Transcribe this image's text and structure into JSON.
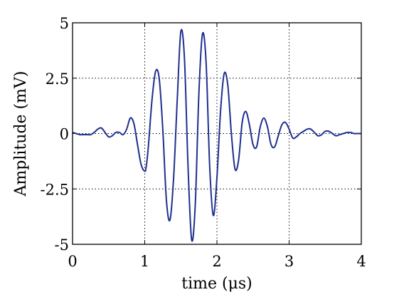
{
  "chart_data": {
    "type": "line",
    "xlabel": "time (μs)",
    "ylabel": "Amplitude (mV)",
    "xlim": [
      0,
      4
    ],
    "ylim": [
      -5,
      5
    ],
    "x_ticks": [
      0,
      1,
      2,
      3,
      4
    ],
    "x_tick_labels": [
      "0",
      "1",
      "2",
      "3",
      "4"
    ],
    "y_ticks": [
      5,
      2.5,
      0,
      -2.5,
      -5
    ],
    "y_tick_labels": [
      "5",
      "2.5",
      "0",
      "-2.5",
      "-5"
    ],
    "grid": true,
    "grid_style": "dotted",
    "line_color": "#1f2f8f",
    "series": [
      {
        "x": [
          0.0,
          0.05,
          0.1,
          0.15,
          0.2,
          0.25,
          0.3,
          0.35,
          0.4,
          0.45,
          0.5,
          0.55,
          0.6,
          0.65,
          0.7,
          0.75,
          0.8,
          0.85,
          0.9,
          0.95,
          1.0,
          1.02,
          1.05,
          1.1,
          1.15,
          1.2,
          1.25,
          1.3,
          1.35,
          1.4,
          1.45,
          1.5,
          1.55,
          1.6,
          1.65,
          1.7,
          1.75,
          1.8,
          1.85,
          1.9,
          1.95,
          2.0,
          2.05,
          2.1,
          2.15,
          2.2,
          2.25,
          2.3,
          2.35,
          2.4,
          2.45,
          2.5,
          2.55,
          2.6,
          2.65,
          2.7,
          2.75,
          2.8,
          2.85,
          2.9,
          2.95,
          3.0,
          3.05,
          3.1,
          3.15,
          3.2,
          3.25,
          3.3,
          3.35,
          3.4,
          3.45,
          3.5,
          3.55,
          3.6,
          3.65,
          3.7,
          3.75,
          3.8,
          3.85,
          3.9,
          3.95,
          4.0
        ],
        "y": [
          0.05,
          0.0,
          -0.05,
          -0.05,
          -0.05,
          -0.05,
          0.05,
          0.2,
          0.25,
          0.05,
          -0.15,
          -0.1,
          0.05,
          0.05,
          -0.05,
          0.2,
          0.7,
          0.45,
          -0.5,
          -1.4,
          -1.7,
          -1.5,
          -0.6,
          1.5,
          2.8,
          2.5,
          0.2,
          -3.0,
          -3.9,
          -2.0,
          1.5,
          4.6,
          3.4,
          -1.5,
          -4.8,
          -3.2,
          1.8,
          4.5,
          3.2,
          -1.5,
          -3.7,
          -2.0,
          1.0,
          2.7,
          2.2,
          0.0,
          -1.6,
          -1.2,
          0.5,
          1.0,
          0.4,
          -0.5,
          -0.6,
          0.3,
          0.7,
          0.3,
          -0.5,
          -0.6,
          -0.1,
          0.4,
          0.5,
          0.2,
          -0.2,
          -0.15,
          0.0,
          0.1,
          0.2,
          0.2,
          0.05,
          -0.1,
          -0.05,
          0.1,
          0.1,
          0.0,
          -0.1,
          -0.05,
          0.0,
          0.05,
          0.05,
          0.0,
          0.0,
          0.0
        ]
      }
    ]
  }
}
